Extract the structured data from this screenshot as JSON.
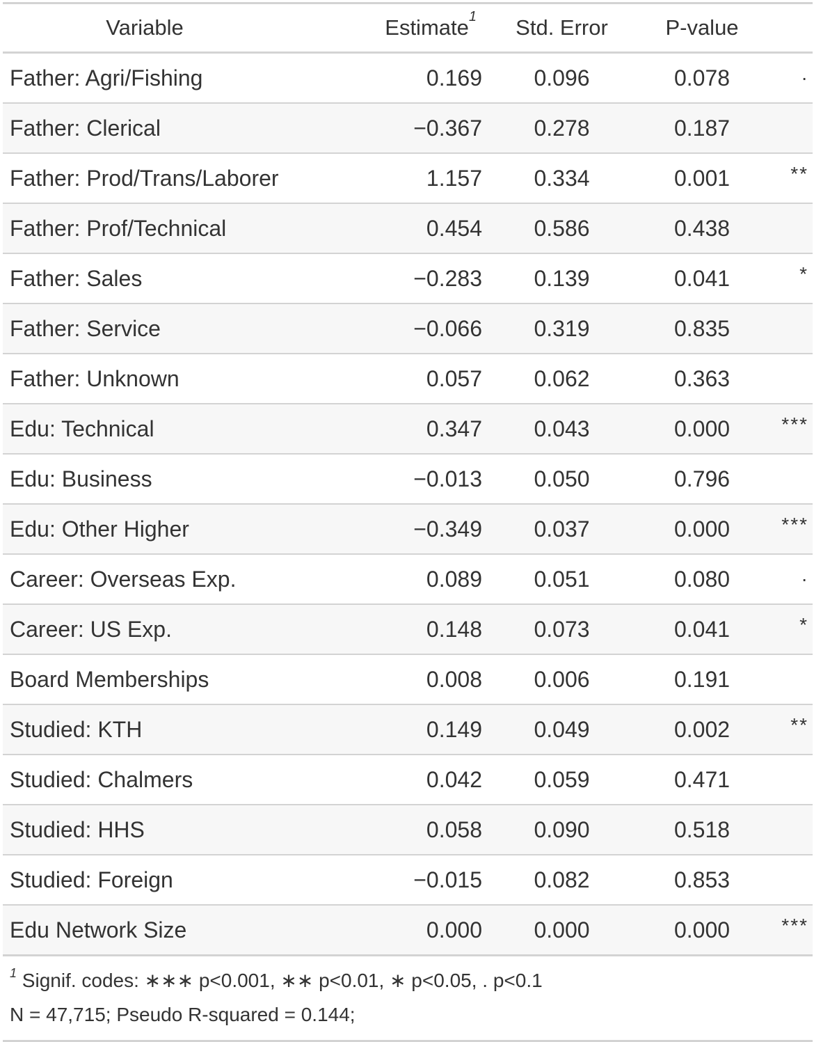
{
  "table": {
    "headers": {
      "variable": "Variable",
      "estimate": "Estimate",
      "estimate_footnote_mark": "1",
      "std_error": "Std. Error",
      "p_value": "P-value"
    },
    "rows": [
      {
        "variable": "Father: Agri/Fishing",
        "estimate": "0.169",
        "std_error": "0.096",
        "p_value": "0.078",
        "sig": "."
      },
      {
        "variable": "Father: Clerical",
        "estimate": "−0.367",
        "std_error": "0.278",
        "p_value": "0.187",
        "sig": ""
      },
      {
        "variable": "Father: Prod/Trans/Laborer",
        "estimate": "1.157",
        "std_error": "0.334",
        "p_value": "0.001",
        "sig": "**"
      },
      {
        "variable": "Father: Prof/Technical",
        "estimate": "0.454",
        "std_error": "0.586",
        "p_value": "0.438",
        "sig": ""
      },
      {
        "variable": "Father: Sales",
        "estimate": "−0.283",
        "std_error": "0.139",
        "p_value": "0.041",
        "sig": "*"
      },
      {
        "variable": "Father: Service",
        "estimate": "−0.066",
        "std_error": "0.319",
        "p_value": "0.835",
        "sig": ""
      },
      {
        "variable": "Father: Unknown",
        "estimate": "0.057",
        "std_error": "0.062",
        "p_value": "0.363",
        "sig": ""
      },
      {
        "variable": "Edu: Technical",
        "estimate": "0.347",
        "std_error": "0.043",
        "p_value": "0.000",
        "sig": "***"
      },
      {
        "variable": "Edu: Business",
        "estimate": "−0.013",
        "std_error": "0.050",
        "p_value": "0.796",
        "sig": ""
      },
      {
        "variable": "Edu: Other Higher",
        "estimate": "−0.349",
        "std_error": "0.037",
        "p_value": "0.000",
        "sig": "***"
      },
      {
        "variable": "Career: Overseas Exp.",
        "estimate": "0.089",
        "std_error": "0.051",
        "p_value": "0.080",
        "sig": "."
      },
      {
        "variable": "Career: US Exp.",
        "estimate": "0.148",
        "std_error": "0.073",
        "p_value": "0.041",
        "sig": "*"
      },
      {
        "variable": "Board Memberships",
        "estimate": "0.008",
        "std_error": "0.006",
        "p_value": "0.191",
        "sig": ""
      },
      {
        "variable": "Studied: KTH",
        "estimate": "0.149",
        "std_error": "0.049",
        "p_value": "0.002",
        "sig": "**"
      },
      {
        "variable": "Studied: Chalmers",
        "estimate": "0.042",
        "std_error": "0.059",
        "p_value": "0.471",
        "sig": ""
      },
      {
        "variable": "Studied: HHS",
        "estimate": "0.058",
        "std_error": "0.090",
        "p_value": "0.518",
        "sig": ""
      },
      {
        "variable": "Studied: Foreign",
        "estimate": "−0.015",
        "std_error": "0.082",
        "p_value": "0.853",
        "sig": ""
      },
      {
        "variable": "Edu Network Size",
        "estimate": "0.000",
        "std_error": "0.000",
        "p_value": "0.000",
        "sig": "***"
      }
    ]
  },
  "footnote": {
    "mark": "1",
    "signif_codes": "Signif. codes: ∗∗∗ p<0.001, ∗∗ p<0.01, ∗ p<0.05, . p<0.1",
    "summary": "N = 47,715; Pseudo R-squared = 0.144;"
  }
}
